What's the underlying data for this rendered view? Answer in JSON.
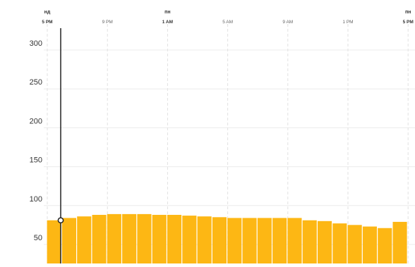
{
  "chart_data": {
    "type": "bar",
    "y_ticks": [
      50,
      100,
      150,
      200,
      250,
      300
    ],
    "x_top_labels": [
      {
        "day": "нд",
        "time": "5 PM",
        "bold": true,
        "bar_index": 0
      },
      {
        "day": "",
        "time": "9 PM",
        "bold": false,
        "bar_index": 4
      },
      {
        "day": "пн",
        "time": "1 AM",
        "bold": true,
        "bar_index": 8
      },
      {
        "day": "",
        "time": "5 AM",
        "bold": false,
        "bar_index": 12
      },
      {
        "day": "",
        "time": "9 AM",
        "bold": false,
        "bar_index": 16
      },
      {
        "day": "",
        "time": "1 PM",
        "bold": false,
        "bar_index": 20
      },
      {
        "day": "пн",
        "time": "5 PM",
        "bold": true,
        "bar_index": 24
      }
    ],
    "values": [
      72,
      75,
      77,
      79,
      80,
      80,
      80,
      79,
      79,
      78,
      77,
      76,
      75,
      75,
      75,
      75,
      75,
      72,
      71,
      68,
      66,
      64,
      62,
      70
    ],
    "ylim": [
      40,
      310
    ],
    "grid": true,
    "bar_color": "#fdb714",
    "marker": {
      "bar_index": 1,
      "value": 72
    }
  }
}
